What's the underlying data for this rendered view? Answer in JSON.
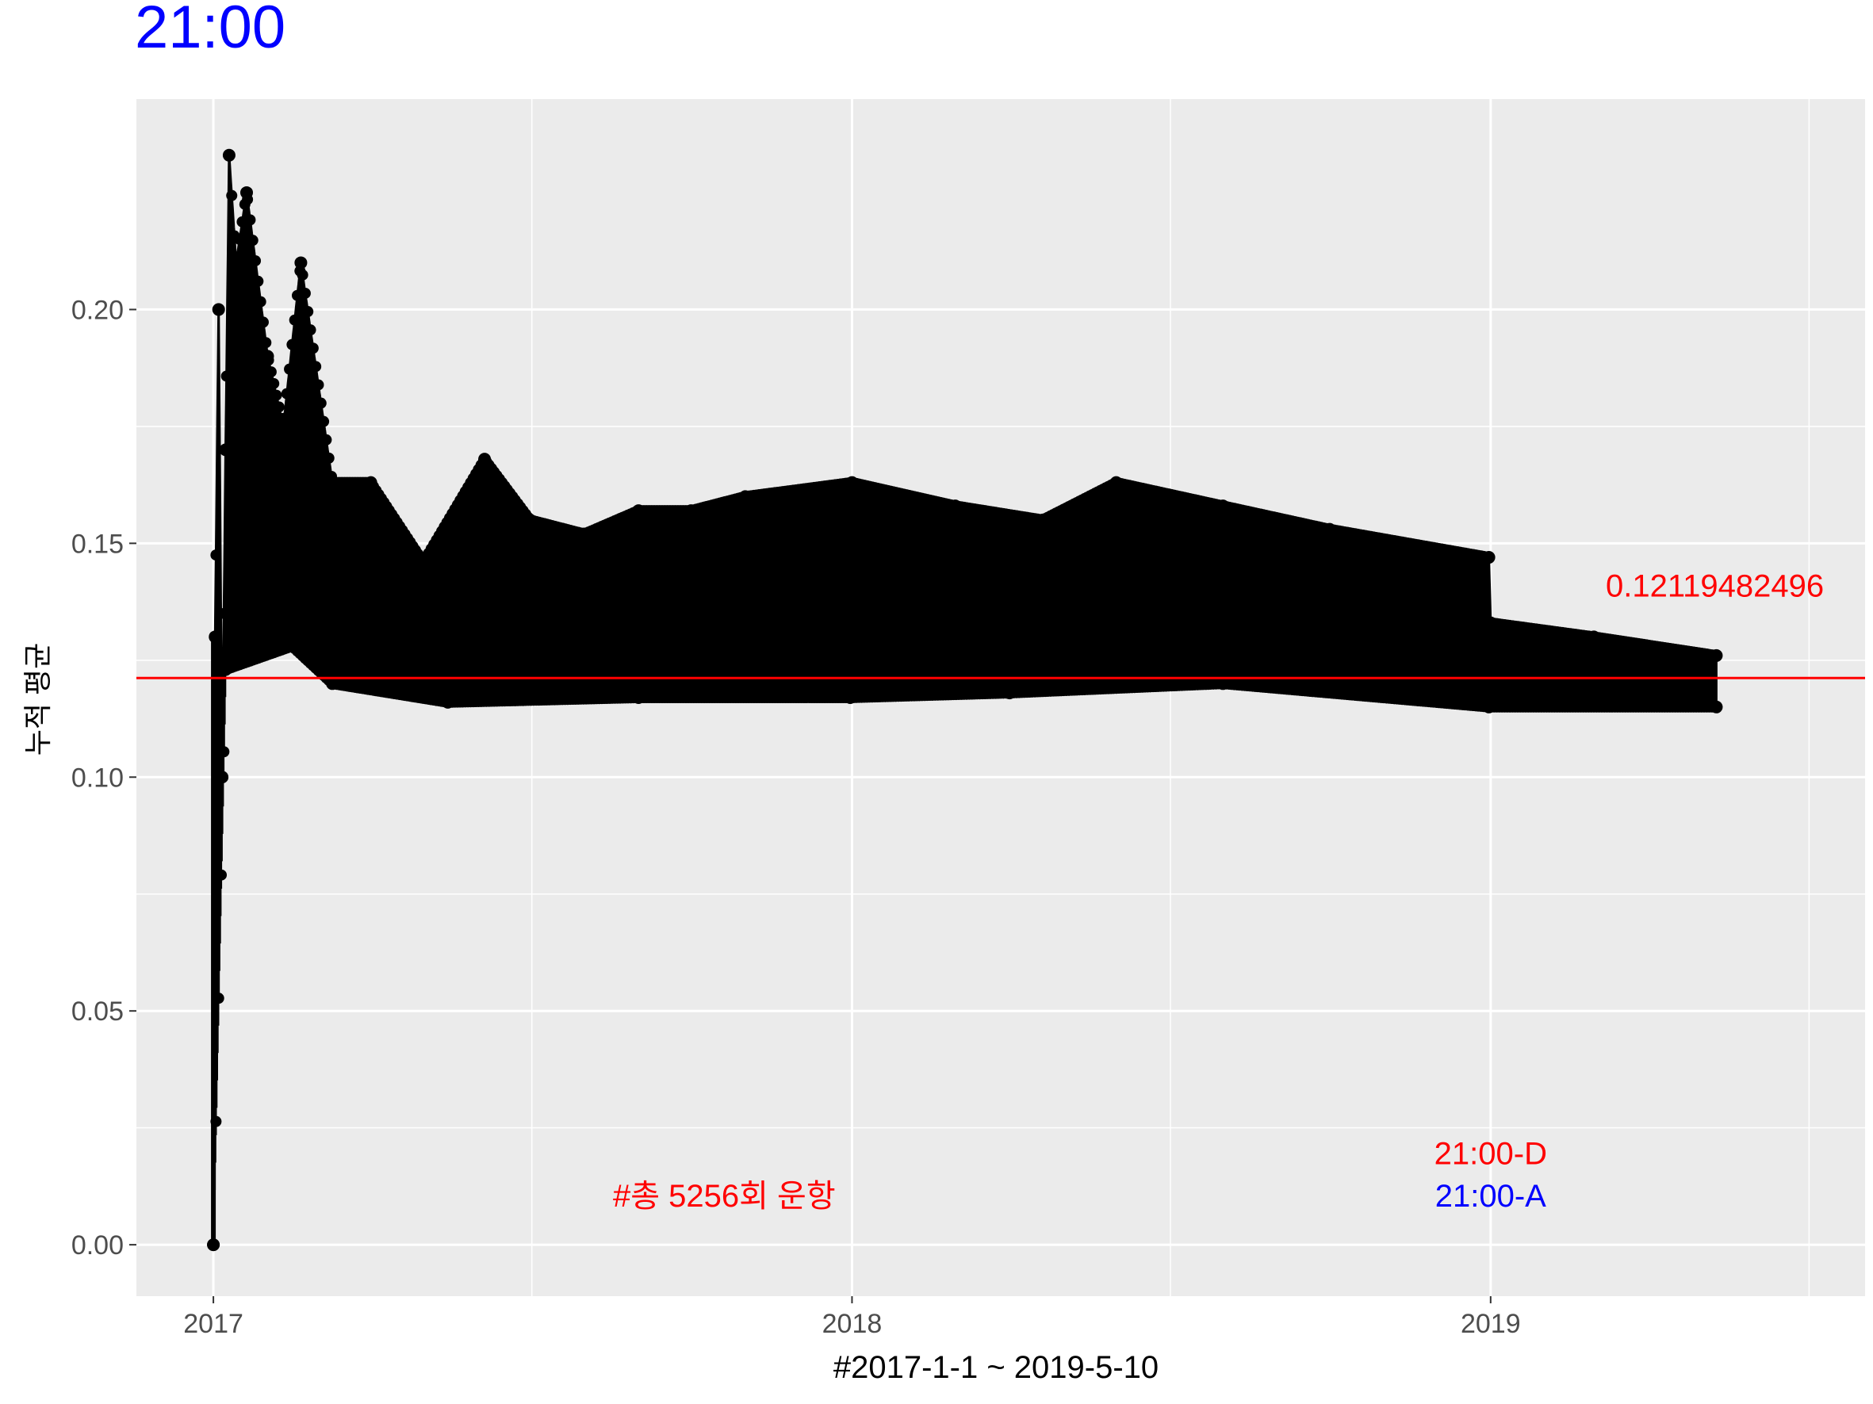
{
  "chart_data": {
    "type": "line",
    "title": "21:00",
    "xlabel": "#2017-1-1 ~ 2019-5-10",
    "ylabel": "누적 평균",
    "x_ticks": [
      "2017",
      "2018",
      "2019"
    ],
    "y_ticks": [
      "0.00",
      "0.05",
      "0.10",
      "0.15",
      "0.20"
    ],
    "xlim": [
      "2016-11-18",
      "2019-08-03"
    ],
    "ylim": [
      -0.011,
      0.245
    ],
    "reference_line": {
      "value": 0.12119482496,
      "label": "0.12119482496",
      "color": "#ff0000"
    },
    "annotations": [
      {
        "text": "#총 5256회 운항",
        "color": "#ff0000"
      },
      {
        "text": "21:00-D",
        "color": "#ff0000"
      },
      {
        "text": "21:00-A",
        "color": "#0000ff"
      }
    ],
    "series": [
      {
        "color": "#000000",
        "points": [
          {
            "x": "2017-01-01",
            "y": 0.0
          },
          {
            "x": "2017-01-02",
            "y": 0.13
          },
          {
            "x": "2017-01-04",
            "y": 0.2
          },
          {
            "x": "2017-01-06",
            "y": 0.1
          },
          {
            "x": "2017-01-08",
            "y": 0.17
          },
          {
            "x": "2017-01-10",
            "y": 0.233
          },
          {
            "x": "2017-01-14",
            "y": 0.21
          },
          {
            "x": "2017-01-20",
            "y": 0.225
          },
          {
            "x": "2017-02-01",
            "y": 0.19
          },
          {
            "x": "2017-02-10",
            "y": 0.175
          },
          {
            "x": "2017-02-20",
            "y": 0.21
          },
          {
            "x": "2017-03-10",
            "y": 0.163
          },
          {
            "x": "2017-04-01",
            "y": 0.163
          },
          {
            "x": "2017-05-01",
            "y": 0.146
          },
          {
            "x": "2017-06-05",
            "y": 0.168
          },
          {
            "x": "2017-07-01",
            "y": 0.155
          },
          {
            "x": "2017-08-01",
            "y": 0.152
          },
          {
            "x": "2017-09-01",
            "y": 0.157
          },
          {
            "x": "2017-10-01",
            "y": 0.157
          },
          {
            "x": "2017-11-01",
            "y": 0.16
          },
          {
            "x": "2018-01-01",
            "y": 0.163
          },
          {
            "x": "2018-03-01",
            "y": 0.158
          },
          {
            "x": "2018-04-20",
            "y": 0.155
          },
          {
            "x": "2018-06-01",
            "y": 0.163
          },
          {
            "x": "2018-08-01",
            "y": 0.158
          },
          {
            "x": "2018-10-01",
            "y": 0.153
          },
          {
            "x": "2018-12-31",
            "y": 0.147
          },
          {
            "x": "2019-01-01",
            "y": 0.133
          },
          {
            "x": "2019-03-01",
            "y": 0.13
          },
          {
            "x": "2019-05-10",
            "y": 0.126
          }
        ],
        "lower_envelope": [
          {
            "x": "2017-01-01",
            "y": 0.0
          },
          {
            "x": "2017-01-08",
            "y": 0.123
          },
          {
            "x": "2017-02-15",
            "y": 0.128
          },
          {
            "x": "2017-03-10",
            "y": 0.12
          },
          {
            "x": "2017-05-15",
            "y": 0.116
          },
          {
            "x": "2017-09-01",
            "y": 0.117
          },
          {
            "x": "2017-12-31",
            "y": 0.117
          },
          {
            "x": "2018-04-01",
            "y": 0.118
          },
          {
            "x": "2018-08-01",
            "y": 0.12
          },
          {
            "x": "2018-12-31",
            "y": 0.115
          },
          {
            "x": "2019-05-10",
            "y": 0.115
          }
        ]
      }
    ]
  }
}
